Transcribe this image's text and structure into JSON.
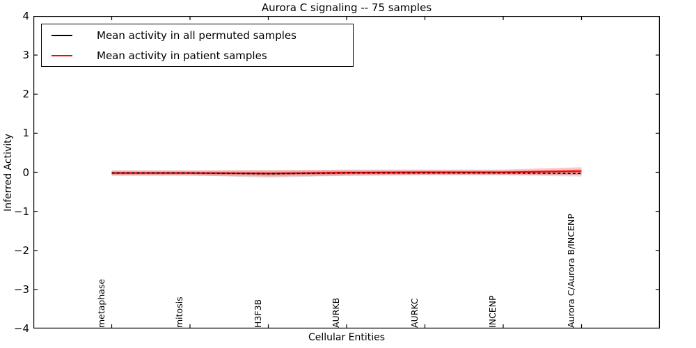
{
  "figure": {
    "title": "Aurora C signaling -- 75 samples",
    "xlabel": "Cellular Entities",
    "ylabel": "Inferred Activity"
  },
  "legend": {
    "items": [
      {
        "label": "Mean activity in all permuted samples",
        "color": "#000000"
      },
      {
        "label": "Mean activity in patient samples",
        "color": "#ff0000"
      }
    ]
  },
  "chart_data": {
    "type": "line",
    "title": "Aurora C signaling -- 75 samples",
    "xlabel": "Cellular Entities",
    "ylabel": "Inferred Activity",
    "categories": [
      "metaphase",
      "mitosis",
      "H3F3B",
      "AURKB",
      "AURKC",
      "INCENP",
      "Aurora C/Aurora B/INCENP"
    ],
    "ylim": [
      -4,
      4
    ],
    "yticks": [
      4,
      3,
      2,
      1,
      0,
      -1,
      -2,
      -3,
      -4
    ],
    "ytick_labels": [
      "4",
      "3",
      "2",
      "1",
      "0",
      "−1",
      "−2",
      "−3",
      "−4"
    ],
    "grid": false,
    "legend_position": "upper left",
    "series": [
      {
        "name": "Mean activity in all permuted samples",
        "color": "#000000",
        "style": "dashed",
        "values": [
          -0.02,
          -0.02,
          -0.04,
          -0.02,
          -0.02,
          -0.02,
          -0.03
        ],
        "spread": [
          0.06,
          0.06,
          0.1,
          0.07,
          0.06,
          0.06,
          0.08
        ],
        "band_color": "rgba(0,0,0,0.10)"
      },
      {
        "name": "Mean activity in patient samples",
        "color": "#ff0000",
        "style": "solid",
        "values": [
          -0.02,
          -0.02,
          -0.03,
          -0.01,
          0.0,
          0.0,
          0.03
        ],
        "spread": [
          0.07,
          0.07,
          0.08,
          0.08,
          0.07,
          0.07,
          0.1
        ],
        "band_color": "rgba(255,0,0,0.22)"
      }
    ]
  }
}
